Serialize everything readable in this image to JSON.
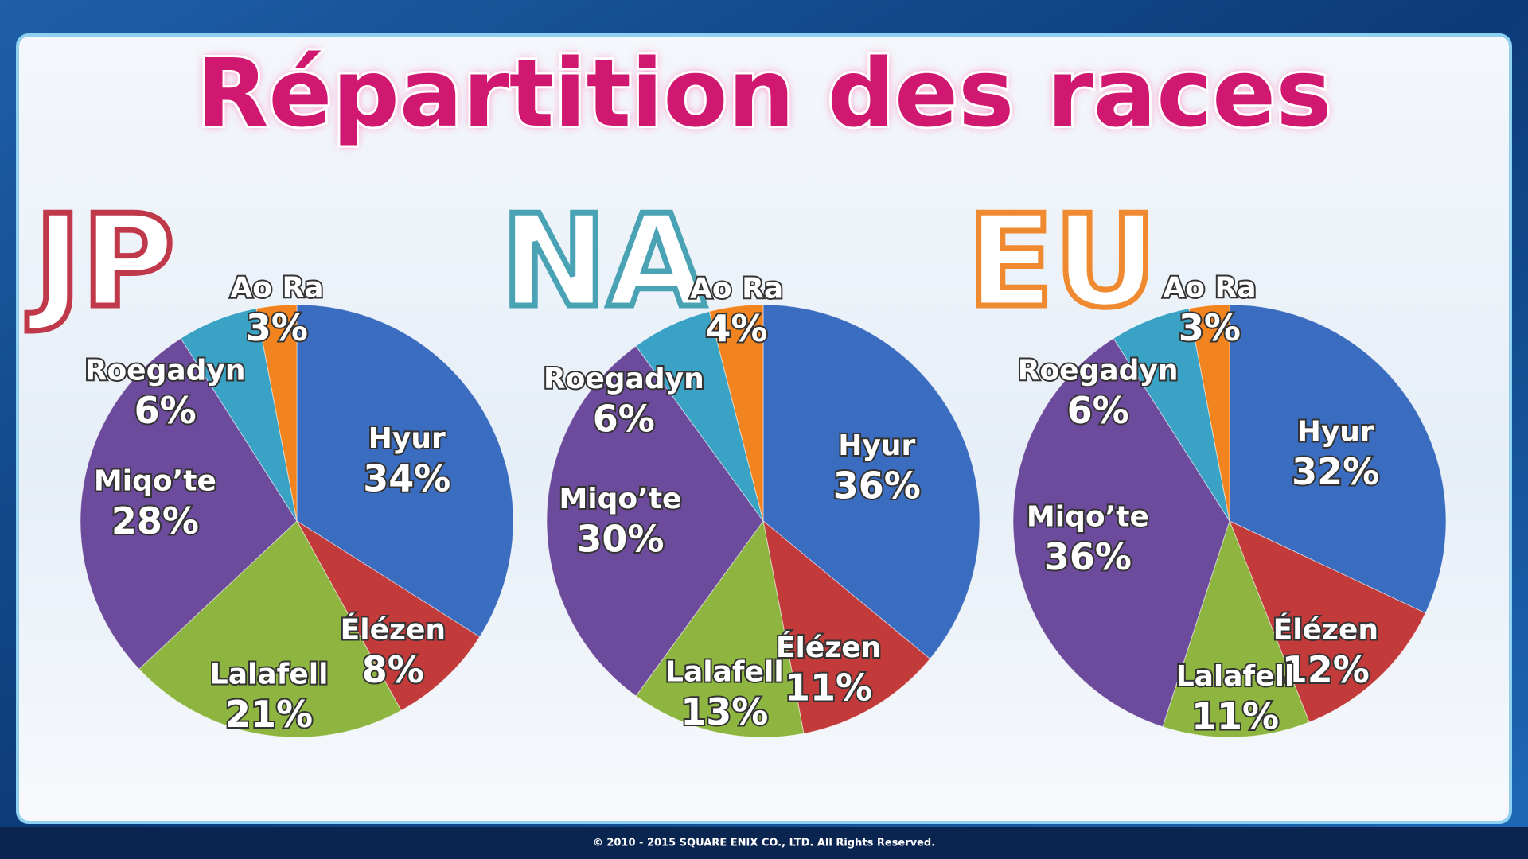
{
  "title": "Répartition des races",
  "footer": "© 2010 - 2015 SQUARE ENIX CO., LTD. All Rights Reserved.",
  "chart_data": [
    {
      "type": "pie",
      "title": "JP",
      "title_color": "#c0394a",
      "categories": [
        "Hyur",
        "Élézen",
        "Lalafell",
        "Miqo’te",
        "Roegadyn",
        "Ao Ra"
      ],
      "values": [
        34,
        8,
        21,
        28,
        6,
        3
      ],
      "value_labels": [
        "34%",
        "8%",
        "21%",
        "28%",
        "6%",
        "3%"
      ],
      "colors": [
        "#3a6cc0",
        "#c23a3a",
        "#8db540",
        "#6d4b9c",
        "#3aa2c4",
        "#f2841f"
      ]
    },
    {
      "type": "pie",
      "title": "NA",
      "title_color": "#4aa3b5",
      "categories": [
        "Hyur",
        "Élézen",
        "Lalafell",
        "Miqo’te",
        "Roegadyn",
        "Ao Ra"
      ],
      "values": [
        36,
        11,
        13,
        30,
        6,
        4
      ],
      "value_labels": [
        "36%",
        "11%",
        "13%",
        "30%",
        "6%",
        "4%"
      ],
      "colors": [
        "#3a6cc0",
        "#c23a3a",
        "#8db540",
        "#6d4b9c",
        "#3aa2c4",
        "#f2841f"
      ]
    },
    {
      "type": "pie",
      "title": "EU",
      "title_color": "#f08a30",
      "categories": [
        "Hyur",
        "Élézen",
        "Lalafell",
        "Miqo’te",
        "Roegadyn",
        "Ao Ra"
      ],
      "values": [
        32,
        12,
        11,
        36,
        6,
        3
      ],
      "value_labels": [
        "32%",
        "12%",
        "11%",
        "36%",
        "6%",
        "3%"
      ],
      "colors": [
        "#3a6cc0",
        "#c23a3a",
        "#8db540",
        "#6d4b9c",
        "#3aa2c4",
        "#f2841f"
      ]
    }
  ]
}
